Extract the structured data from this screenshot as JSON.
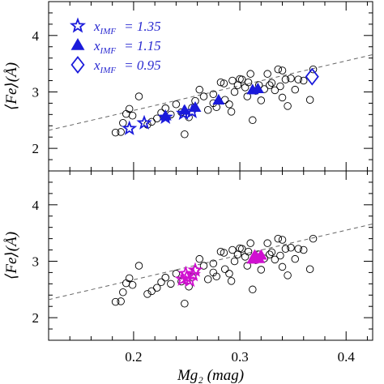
{
  "chart_data": {
    "type": "scatter",
    "xlabel": "Mg₂ (mag)",
    "ylabel": "⟨Fe⟩(Å)",
    "xlim": [
      0.12,
      0.425
    ],
    "ylim": [
      1.6,
      4.6
    ],
    "x_ticks": [
      "0.2",
      "0.3",
      "0.4"
    ],
    "x_tick_values": [
      0.2,
      0.3,
      0.4
    ],
    "y_ticks": [
      "2",
      "3",
      "4"
    ],
    "y_tick_values": [
      2,
      3,
      4
    ],
    "fit_line": {
      "x": [
        0.12,
        0.425
      ],
      "y": [
        2.32,
        3.66
      ]
    },
    "observed_galaxies": [
      [
        0.183,
        2.28
      ],
      [
        0.188,
        2.29
      ],
      [
        0.19,
        2.45
      ],
      [
        0.193,
        2.61
      ],
      [
        0.196,
        2.7
      ],
      [
        0.199,
        2.58
      ],
      [
        0.205,
        2.92
      ],
      [
        0.213,
        2.42
      ],
      [
        0.217,
        2.47
      ],
      [
        0.222,
        2.53
      ],
      [
        0.226,
        2.63
      ],
      [
        0.23,
        2.71
      ],
      [
        0.235,
        2.6
      ],
      [
        0.24,
        2.78
      ],
      [
        0.245,
        2.64
      ],
      [
        0.248,
        2.25
      ],
      [
        0.252,
        2.55
      ],
      [
        0.255,
        2.72
      ],
      [
        0.258,
        2.84
      ],
      [
        0.262,
        3.04
      ],
      [
        0.266,
        2.92
      ],
      [
        0.27,
        2.68
      ],
      [
        0.275,
        2.8
      ],
      [
        0.278,
        2.73
      ],
      [
        0.282,
        3.17
      ],
      [
        0.286,
        2.86
      ],
      [
        0.29,
        2.78
      ],
      [
        0.293,
        3.2
      ],
      [
        0.295,
        3.0
      ],
      [
        0.298,
        3.12
      ],
      [
        0.302,
        3.22
      ],
      [
        0.305,
        3.08
      ],
      [
        0.308,
        3.17
      ],
      [
        0.31,
        3.32
      ],
      [
        0.312,
        2.5
      ],
      [
        0.315,
        3.02
      ],
      [
        0.318,
        3.12
      ],
      [
        0.32,
        2.85
      ],
      [
        0.323,
        3.05
      ],
      [
        0.326,
        3.32
      ],
      [
        0.33,
        3.16
      ],
      [
        0.333,
        3.03
      ],
      [
        0.336,
        3.4
      ],
      [
        0.338,
        3.1
      ],
      [
        0.34,
        2.9
      ],
      [
        0.343,
        3.22
      ],
      [
        0.345,
        2.75
      ],
      [
        0.348,
        3.24
      ],
      [
        0.352,
        3.04
      ],
      [
        0.355,
        3.22
      ],
      [
        0.36,
        3.2
      ],
      [
        0.366,
        2.86
      ],
      [
        0.369,
        3.4
      ],
      [
        0.3,
        3.23
      ],
      [
        0.285,
        3.15
      ],
      [
        0.275,
        2.96
      ],
      [
        0.292,
        2.65
      ],
      [
        0.307,
        2.92
      ],
      [
        0.328,
        3.12
      ],
      [
        0.34,
        3.38
      ]
    ],
    "panels": [
      {
        "id": "top",
        "series": [
          {
            "name": "x_IMF = 1.35",
            "marker": "star",
            "color": "#1a1adb",
            "points": [
              [
                0.196,
                2.35
              ],
              [
                0.21,
                2.45
              ],
              [
                0.23,
                2.55
              ],
              [
                0.247,
                2.62
              ],
              [
                0.255,
                2.65
              ]
            ]
          },
          {
            "name": "x_IMF = 1.15",
            "marker": "triangle",
            "color": "#1a1adb",
            "points": [
              [
                0.23,
                2.57
              ],
              [
                0.248,
                2.67
              ],
              [
                0.258,
                2.72
              ],
              [
                0.28,
                2.85
              ],
              [
                0.312,
                3.03
              ],
              [
                0.317,
                3.05
              ]
            ]
          },
          {
            "name": "x_IMF = 0.95",
            "marker": "diamond",
            "color": "#1a1adb",
            "points": [
              [
                0.368,
                3.27
              ]
            ]
          }
        ]
      },
      {
        "id": "bottom",
        "series": [
          {
            "name": "star",
            "marker": "star",
            "color": "#d010d0",
            "points": [
              [
                0.246,
                2.68
              ],
              [
                0.25,
                2.72
              ],
              [
                0.253,
                2.66
              ],
              [
                0.256,
                2.76
              ],
              [
                0.258,
                2.84
              ],
              [
                0.249,
                2.78
              ]
            ]
          },
          {
            "name": "triangle",
            "marker": "triangle",
            "color": "#d010d0",
            "points": [
              [
                0.312,
                3.03
              ],
              [
                0.316,
                3.06
              ],
              [
                0.32,
                3.1
              ],
              [
                0.314,
                3.1
              ],
              [
                0.318,
                3.04
              ]
            ]
          }
        ]
      }
    ],
    "legend": {
      "placement": "top-left",
      "entries": [
        {
          "marker": "star",
          "prefix": "x",
          "subscript": "IMF",
          "value": "= 1.35"
        },
        {
          "marker": "triangle",
          "prefix": "x",
          "subscript": "IMF",
          "value": "= 1.15"
        },
        {
          "marker": "diamond",
          "prefix": "x",
          "subscript": "IMF",
          "value": "= 0.95"
        }
      ]
    }
  }
}
